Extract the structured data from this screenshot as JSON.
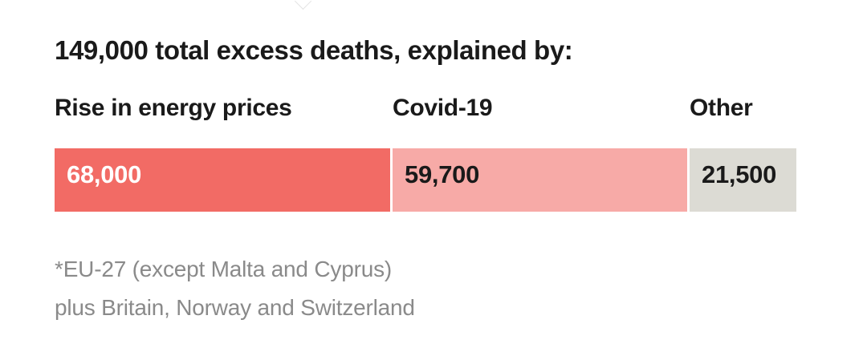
{
  "title": "149,000 total excess deaths, explained by:",
  "footnote": {
    "line1": "*EU-27 (except Malta and Cyprus)",
    "line2": "plus Britain, Norway and Switzerland"
  },
  "colors": {
    "energy": "#f26b65",
    "covid": "#f7aaa7",
    "other": "#dcdbd4",
    "value_light": "#ffffff",
    "value_dark": "#1a1a1a"
  },
  "chart_data": {
    "type": "bar",
    "orientation": "horizontal-stacked",
    "title": "149,000 total excess deaths, explained by:",
    "total": 149000,
    "categories": [
      "Rise in energy prices",
      "Covid-19",
      "Other"
    ],
    "values": [
      68000,
      59700,
      21500
    ],
    "value_labels": [
      "68,000",
      "59,700",
      "21,500"
    ],
    "grid": false,
    "legend": "none"
  }
}
